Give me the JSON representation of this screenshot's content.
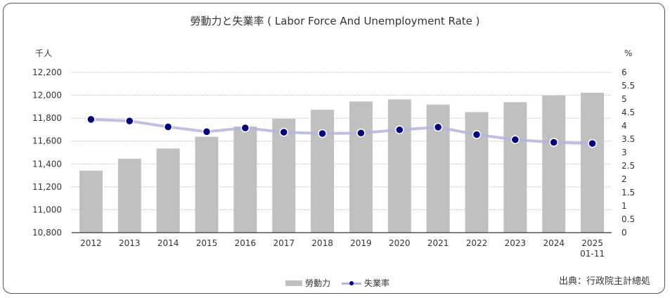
{
  "chart_data": {
    "type": "bar+line",
    "title": "勞動力と失業率（Labor Force And Unemployment Rate）",
    "title_display": "勞動力と失業率 ( Labor Force And Unemployment Rate )",
    "categories": [
      "2012",
      "2013",
      "2014",
      "2015",
      "2016",
      "2017",
      "2018",
      "2019",
      "2020",
      "2021",
      "2022",
      "2023",
      "2024",
      "2025\n01-11"
    ],
    "category_labels": [
      [
        "2012"
      ],
      [
        "2013"
      ],
      [
        "2014"
      ],
      [
        "2015"
      ],
      [
        "2016"
      ],
      [
        "2017"
      ],
      [
        "2018"
      ],
      [
        "2019"
      ],
      [
        "2020"
      ],
      [
        "2021"
      ],
      [
        "2022"
      ],
      [
        "2023"
      ],
      [
        "2024"
      ],
      [
        "2025",
        "01-11"
      ]
    ],
    "series": [
      {
        "name": "勞動力",
        "type": "bar",
        "axis": "left",
        "color": "#c0c0c0",
        "values": [
          11341,
          11445,
          11535,
          11638,
          11727,
          11795,
          11874,
          11946,
          11964,
          11919,
          11853,
          11940,
          11998,
          12022
        ]
      },
      {
        "name": "失業率",
        "type": "line",
        "axis": "right",
        "line_color": "#b4b4dc",
        "marker_color": "#000080",
        "values": [
          4.24,
          4.18,
          3.96,
          3.78,
          3.92,
          3.76,
          3.71,
          3.73,
          3.85,
          3.95,
          3.67,
          3.48,
          3.38,
          3.34
        ]
      }
    ],
    "left_axis": {
      "unit": "千人",
      "min": 10800,
      "max": 12200,
      "step": 200,
      "ticks": [
        "10,800",
        "11,000",
        "11,200",
        "11,400",
        "11,600",
        "11,800",
        "12,000",
        "12,200"
      ]
    },
    "right_axis": {
      "unit": "%",
      "min": 0,
      "max": 6,
      "step": 0.5,
      "ticks": [
        "0",
        "0.5",
        "1",
        "1.5",
        "2",
        "2.5",
        "3",
        "3.5",
        "4",
        "4.5",
        "5",
        "5.5",
        "6"
      ]
    },
    "grid": true,
    "legend_position": "bottom"
  },
  "legend": {
    "bar_label": "勞動力",
    "line_label": "失業率"
  },
  "source": "出典：行政院主計總処"
}
